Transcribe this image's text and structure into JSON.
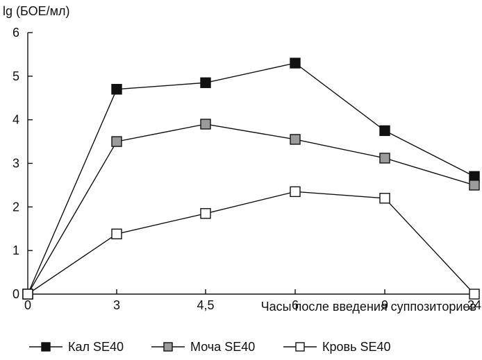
{
  "chart_data": {
    "type": "line",
    "title": "",
    "ylabel": "lg (БОЕ/мл)",
    "xlabel": "Часы после введения суппозиториев",
    "categories": [
      "0",
      "3",
      "4,5",
      "6",
      "9",
      "24"
    ],
    "ylim": [
      0,
      6
    ],
    "y_ticks": [
      "0",
      "1",
      "2",
      "3",
      "4",
      "5",
      "6"
    ],
    "series": [
      {
        "name": "Кал SE40",
        "color": "#111111",
        "values": [
          0,
          4.7,
          4.85,
          5.3,
          3.75,
          2.7
        ]
      },
      {
        "name": "Моча SE40",
        "color": "#9a9a9a",
        "values": [
          0,
          3.5,
          3.9,
          3.55,
          3.12,
          2.5
        ]
      },
      {
        "name": "Кровь SE40",
        "color": "#ffffff",
        "values": [
          0,
          1.38,
          1.85,
          2.35,
          2.2,
          0
        ]
      }
    ],
    "grid": false,
    "legend_position": "bottom-left"
  }
}
